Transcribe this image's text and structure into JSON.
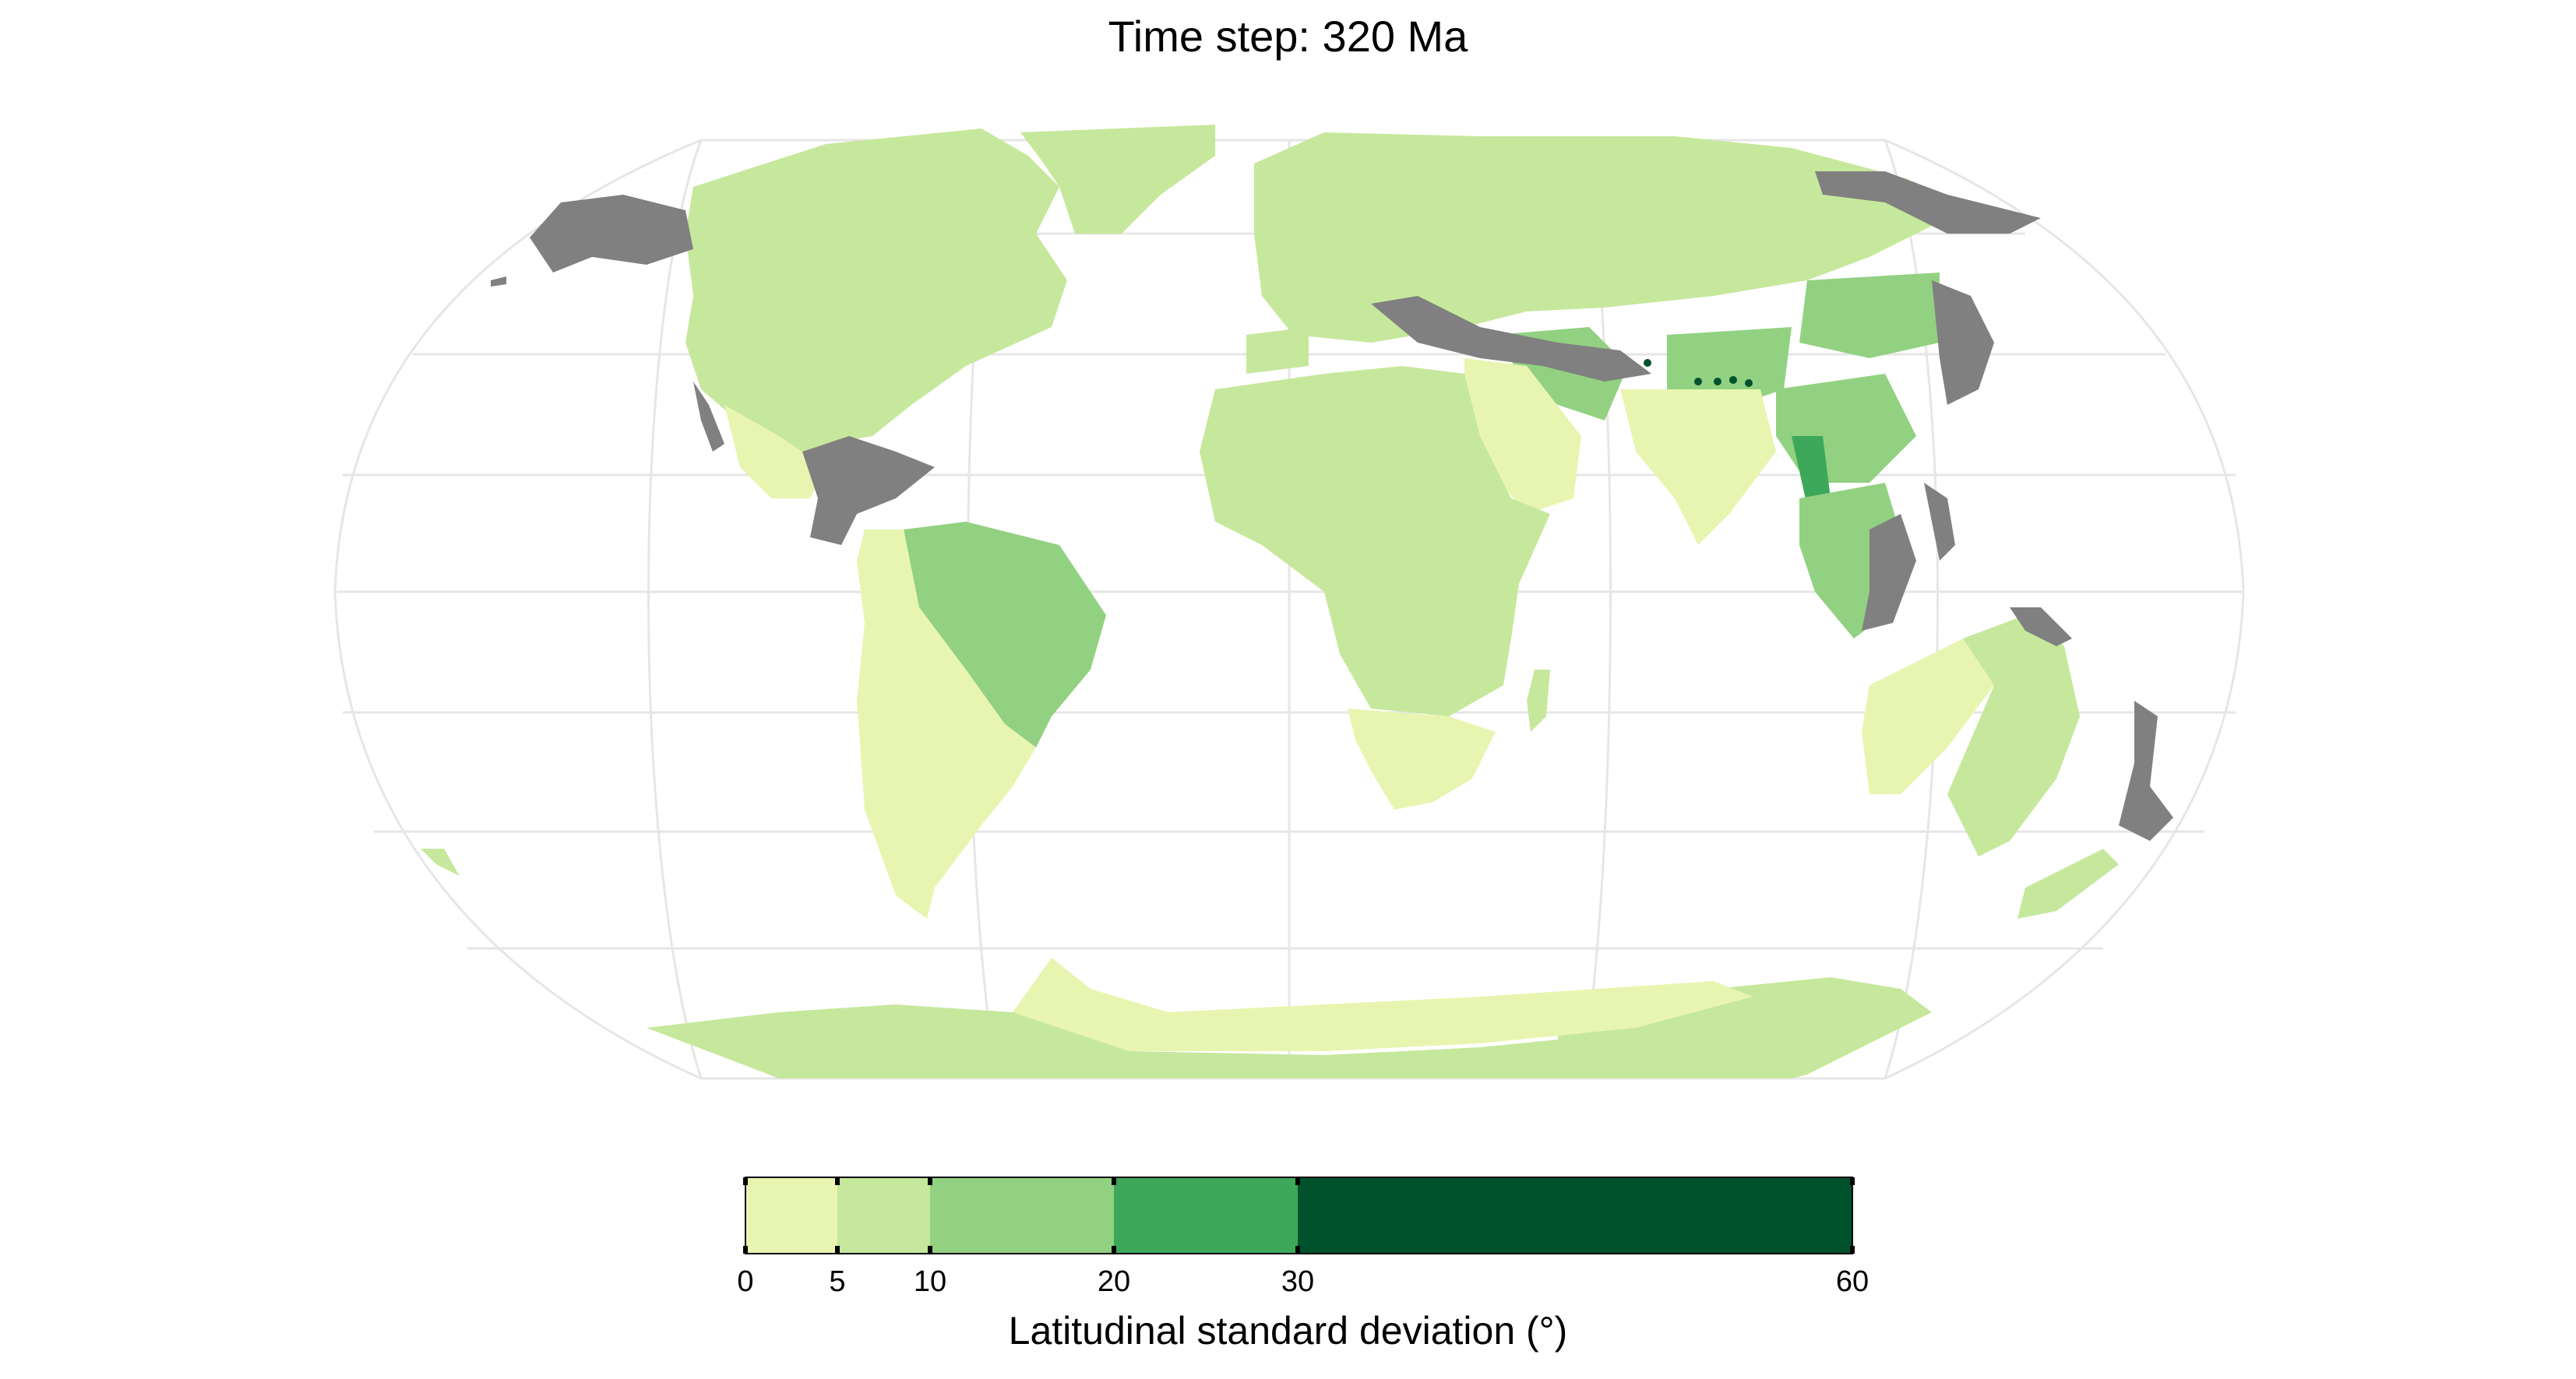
{
  "title": "Time step: 320 Ma",
  "colors": {
    "bin_0_5": "#e8f5b0",
    "bin_5_10": "#c6e89c",
    "bin_10_20": "#92d181",
    "bin_20_30": "#3ea85a",
    "bin_30_60": "#00522d",
    "no_data": "#808080",
    "graticule": "#e6e6e6"
  },
  "legend": {
    "title": "Latitudinal standard deviation (°)",
    "breaks": [
      "0",
      "5",
      "10",
      "20",
      "30",
      "60"
    ],
    "bins": [
      {
        "range": "0-5",
        "color": "#e8f5b0"
      },
      {
        "range": "5-10",
        "color": "#c6e89c"
      },
      {
        "range": "10-20",
        "color": "#92d181"
      },
      {
        "range": "20-30",
        "color": "#3ea85a"
      },
      {
        "range": "30-60",
        "color": "#00522d"
      }
    ]
  },
  "projection": "Robinson",
  "graticule": "on"
}
